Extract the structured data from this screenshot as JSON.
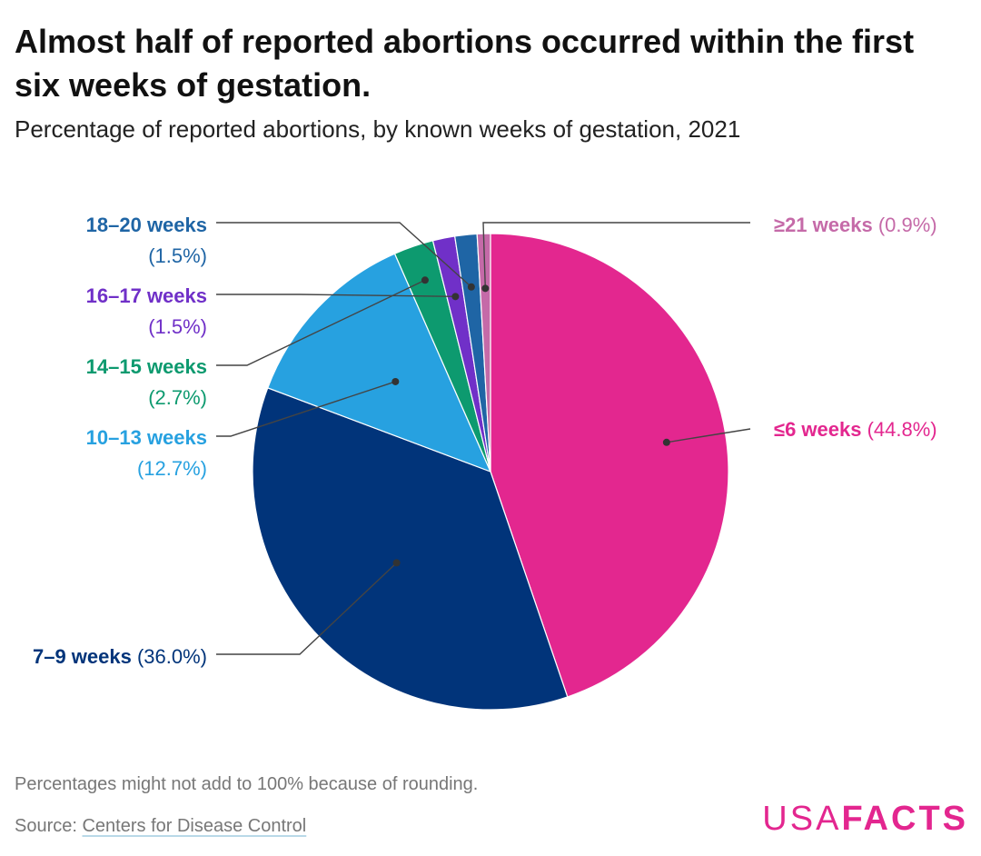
{
  "title": "Almost half of reported abortions occurred within the first six weeks of gestation.",
  "subtitle": "Percentage of reported abortions, by known weeks of gestation, 2021",
  "chart_data": {
    "type": "pie",
    "slices": [
      {
        "label": "≤6 weeks",
        "value_text": "(44.8%)",
        "value": 44.8,
        "color": "#e3278f"
      },
      {
        "label": "7–9 weeks",
        "value_text": "(36.0%)",
        "value": 36.0,
        "color": "#01347a"
      },
      {
        "label": "10–13 weeks",
        "value_text": "(12.7%)",
        "value": 12.7,
        "color": "#27a1e0"
      },
      {
        "label": "14–15 weeks",
        "value_text": "(2.7%)",
        "value": 2.7,
        "color": "#0d9a6f"
      },
      {
        "label": "16–17 weeks",
        "value_text": "(1.5%)",
        "value": 1.5,
        "color": "#7030c8"
      },
      {
        "label": "18–20 weeks",
        "value_text": "(1.5%)",
        "value": 1.5,
        "color": "#1f65a5"
      },
      {
        "label": "≥21 weeks",
        "value_text": "(0.9%)",
        "value": 0.9,
        "color": "#c56aa8"
      }
    ]
  },
  "footer": {
    "note": "Percentages might not add to 100% because of rounding.",
    "source_prefix": "Source: ",
    "source_link": "Centers for Disease Control"
  },
  "logo": {
    "part1": "USA",
    "part2": "FACTS"
  }
}
